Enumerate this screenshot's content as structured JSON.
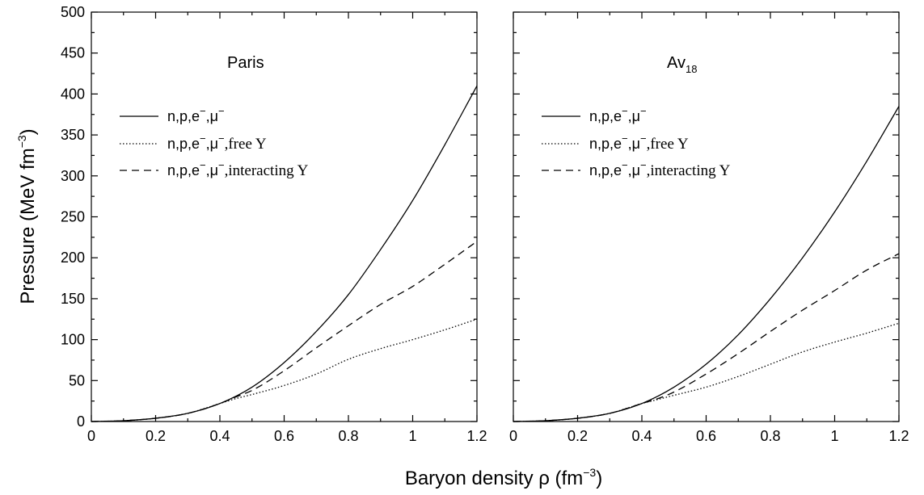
{
  "chart_data": [
    {
      "type": "line",
      "title": "Paris",
      "title_sub": "",
      "xlabel": "Baryon density ρ (fm⁻³)",
      "ylabel": "Pressure (MeV fm⁻³)",
      "xlim": [
        0,
        1.2
      ],
      "ylim": [
        0,
        500
      ],
      "x_ticks": [
        "0",
        "0.2",
        "0.4",
        "0.6",
        "0.8",
        "1",
        "1.2"
      ],
      "y_ticks": [
        "0",
        "50",
        "100",
        "150",
        "200",
        "250",
        "300",
        "350",
        "400",
        "450",
        "500"
      ],
      "grid": false,
      "legend_position": "upper-left",
      "series": [
        {
          "name": "n,p,e⁻,μ⁻",
          "style": "solid",
          "x": [
            0.0,
            0.1,
            0.2,
            0.3,
            0.4,
            0.5,
            0.6,
            0.7,
            0.8,
            0.9,
            1.0,
            1.1,
            1.2
          ],
          "y": [
            0,
            1,
            4,
            10,
            22,
            42,
            72,
            110,
            155,
            210,
            270,
            338,
            410
          ]
        },
        {
          "name": "n,p,e⁻,μ⁻,free Y",
          "style": "dotted",
          "x": [
            0.0,
            0.1,
            0.2,
            0.3,
            0.4,
            0.45,
            0.5,
            0.6,
            0.7,
            0.8,
            0.9,
            1.0,
            1.1,
            1.2
          ],
          "y": [
            0,
            1,
            4,
            10,
            22,
            28,
            33,
            44,
            58,
            76,
            89,
            100,
            112,
            125
          ]
        },
        {
          "name": "n,p,e⁻,μ⁻,interacting Y",
          "style": "dashed",
          "x": [
            0.0,
            0.1,
            0.2,
            0.3,
            0.4,
            0.45,
            0.5,
            0.6,
            0.7,
            0.8,
            0.9,
            1.0,
            1.1,
            1.2
          ],
          "y": [
            0,
            1,
            4,
            10,
            22,
            30,
            38,
            62,
            90,
            117,
            143,
            165,
            192,
            220
          ]
        }
      ]
    },
    {
      "type": "line",
      "title": "Av",
      "title_sub": "18",
      "xlabel": "Baryon density ρ (fm⁻³)",
      "ylabel": "Pressure (MeV fm⁻³)",
      "xlim": [
        0,
        1.2
      ],
      "ylim": [
        0,
        500
      ],
      "x_ticks": [
        "0",
        "0.2",
        "0.4",
        "0.6",
        "0.8",
        "1",
        "1.2"
      ],
      "grid": false,
      "legend_position": "upper-left",
      "series": [
        {
          "name": "n,p,e⁻,μ⁻",
          "style": "solid",
          "x": [
            0.0,
            0.1,
            0.2,
            0.3,
            0.4,
            0.5,
            0.6,
            0.7,
            0.8,
            0.9,
            1.0,
            1.1,
            1.2
          ],
          "y": [
            0,
            1,
            4,
            10,
            22,
            42,
            70,
            106,
            150,
            200,
            256,
            318,
            385
          ]
        },
        {
          "name": "n,p,e⁻,μ⁻,free Y",
          "style": "dotted",
          "x": [
            0.0,
            0.1,
            0.2,
            0.3,
            0.4,
            0.45,
            0.5,
            0.6,
            0.7,
            0.8,
            0.9,
            1.0,
            1.1,
            1.2
          ],
          "y": [
            0,
            1,
            4,
            10,
            22,
            27,
            32,
            42,
            55,
            70,
            85,
            97,
            108,
            120
          ]
        },
        {
          "name": "n,p,e⁻,μ⁻,interacting Y",
          "style": "dashed",
          "x": [
            0.0,
            0.1,
            0.2,
            0.3,
            0.4,
            0.45,
            0.5,
            0.6,
            0.7,
            0.8,
            0.9,
            1.0,
            1.1,
            1.2
          ],
          "y": [
            0,
            1,
            4,
            10,
            22,
            28,
            36,
            58,
            83,
            110,
            136,
            160,
            185,
            205
          ]
        }
      ]
    }
  ],
  "labels": {
    "ylabel_main": "Pressure (MeV fm",
    "ylabel_sup": "−3",
    "ylabel_close": ")",
    "xlabel_main": "Baryon density ρ (fm",
    "xlabel_sup": "−3",
    "xlabel_close": ")"
  },
  "legend": {
    "prefix": "n,p,e",
    "sup_minus": "−",
    "comma_mu": ",μ",
    "free_suffix": ",free Y",
    "interacting_suffix": ",interacting Y"
  }
}
